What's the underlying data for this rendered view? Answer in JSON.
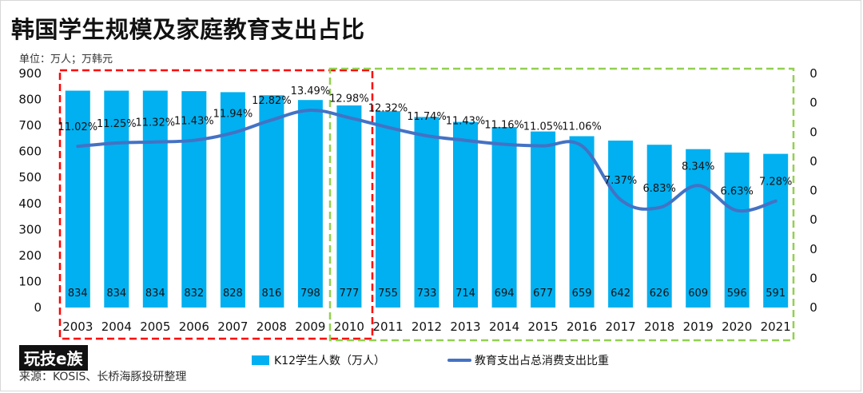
{
  "chart_data": {
    "type": "bar",
    "title": "韩国学生规模及家庭教育支出占比",
    "unit_note": "单位：万人；万韩元",
    "source": "来源：KOSIS、长桥海豚投研整理",
    "brand": "玩技e族",
    "categories": [
      "2003",
      "2004",
      "2005",
      "2006",
      "2007",
      "2008",
      "2009",
      "2010",
      "2011",
      "2012",
      "2013",
      "2014",
      "2015",
      "2016",
      "2017",
      "2018",
      "2019",
      "2020",
      "2021"
    ],
    "series": [
      {
        "name": "K12学生人数（万人）",
        "type": "bar",
        "color": "#00b0f0",
        "values": [
          834,
          834,
          834,
          832,
          828,
          816,
          798,
          777,
          755,
          733,
          714,
          694,
          677,
          659,
          642,
          626,
          609,
          596,
          591
        ],
        "labels": [
          "834",
          "834",
          "834",
          "832",
          "828",
          "816",
          "798",
          "777",
          "755",
          "733",
          "714",
          "694",
          "677",
          "659",
          "642",
          "626",
          "609",
          "596",
          "591"
        ]
      },
      {
        "name": "教育支出占总消费支出比重",
        "type": "line",
        "color": "#4472c4",
        "values": [
          11.02,
          11.25,
          11.32,
          11.43,
          11.94,
          12.82,
          13.49,
          12.98,
          12.32,
          11.74,
          11.43,
          11.16,
          11.05,
          11.06,
          7.37,
          6.83,
          8.34,
          6.63,
          7.28
        ],
        "labels": [
          "11.02%",
          "11.25%",
          "11.32%",
          "11.43%",
          "11.94%",
          "12.82%",
          "13.49%",
          "12.98%",
          "12.32%",
          "11.74%",
          "11.43%",
          "11.16%",
          "11.05%",
          "11.06%",
          "7.37%",
          "6.83%",
          "8.34%",
          "6.63%",
          "7.28%"
        ]
      }
    ],
    "left_axis": {
      "ylim": [
        0,
        900
      ],
      "ticks": [
        "0",
        "100",
        "200",
        "300",
        "400",
        "500",
        "600",
        "700",
        "800",
        "900"
      ]
    },
    "right_axis": {
      "ylim": [
        0,
        16
      ],
      "ticks": [
        "0",
        "0",
        "0",
        "0",
        "0",
        "0",
        "0",
        "0",
        "0"
      ]
    },
    "highlights": [
      {
        "name": "red-dashed-box",
        "color": "#ff0000",
        "from_category": "2003",
        "to_category": "2010"
      },
      {
        "name": "green-dashed-box",
        "color": "#92d050",
        "from_category": "2010",
        "to_category": "2021"
      }
    ],
    "legend_position": "bottom",
    "grid": false
  }
}
